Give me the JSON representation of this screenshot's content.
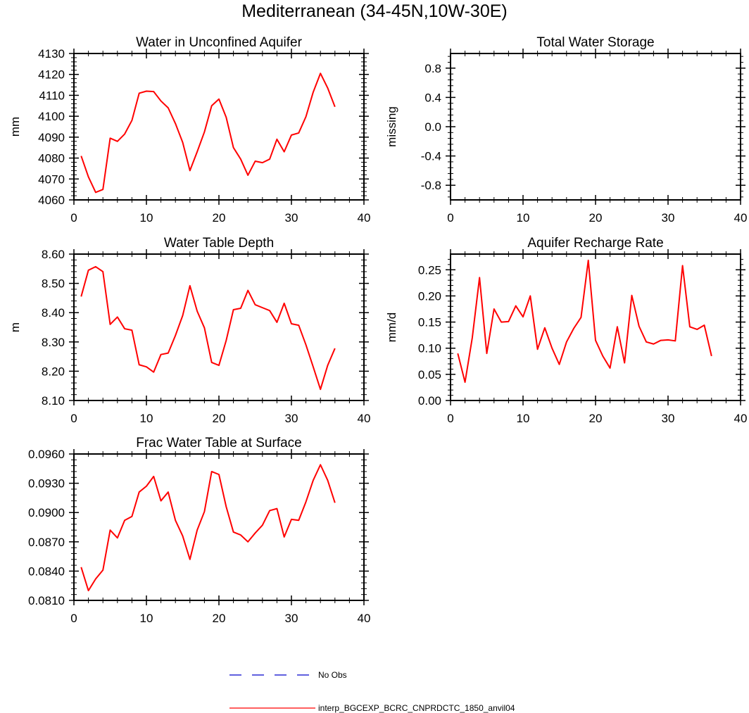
{
  "title": "Mediterranean (34-45N,10W-30E)",
  "colors": {
    "model": "#ff0000",
    "obs": "#0000cc",
    "axis": "#000000"
  },
  "legend": {
    "obs_label": "No Obs",
    "model_label": "interp_BGCEXP_BCRC_CNPRDCTC_1850_anvil04"
  },
  "chart_data": [
    {
      "type": "line",
      "title": "Water in Unconfined Aquifer",
      "ylabel": "mm",
      "xlabel": "",
      "xlim": [
        0,
        40
      ],
      "ylim": [
        4060,
        4130
      ],
      "xticks": [
        0,
        10,
        20,
        30,
        40
      ],
      "xtick_labels": [
        "0",
        "10",
        "20",
        "30",
        "40"
      ],
      "yticks": [
        4060,
        4070,
        4080,
        4090,
        4100,
        4110,
        4120,
        4130
      ],
      "ytick_labels": [
        "4060",
        "4070",
        "4080",
        "4090",
        "4100",
        "4110",
        "4120",
        "4130"
      ],
      "series": [
        {
          "name": "interp_BGCEXP_BCRC_CNPRDCTC_1850_anvil04",
          "x": [
            1,
            2,
            3,
            4,
            5,
            6,
            7,
            8,
            9,
            10,
            11,
            12,
            13,
            14,
            15,
            16,
            17,
            18,
            19,
            20,
            21,
            22,
            23,
            24,
            25,
            26,
            27,
            28,
            29,
            30,
            31,
            32,
            33,
            34,
            35,
            36
          ],
          "values": [
            4081,
            4071,
            4063.6,
            4065,
            4089.5,
            4088,
            4091.5,
            4098,
            4111,
            4112,
            4111.8,
            4107.3,
            4104,
            4096.5,
            4087.5,
            4074,
            4083,
            4092.5,
            4105,
            4108.2,
            4099.5,
            4085,
            4079.5,
            4071.8,
            4078.5,
            4077.8,
            4079.5,
            4089,
            4083,
            4091,
            4092,
            4099.8,
            4111.5,
            4120.5,
            4113.5,
            4104.5
          ]
        }
      ]
    },
    {
      "type": "line",
      "title": "Total Water Storage",
      "ylabel": "missing",
      "xlabel": "",
      "xlim": [
        0,
        40
      ],
      "ylim": [
        -1,
        1
      ],
      "xticks": [
        0,
        10,
        20,
        30,
        40
      ],
      "xtick_labels": [
        "0",
        "10",
        "20",
        "30",
        "40"
      ],
      "yticks": [
        -0.8,
        -0.4,
        0.0,
        0.4,
        0.8
      ],
      "ytick_labels": [
        "-0.8",
        "-0.4",
        "0.0",
        "0.4",
        "0.8"
      ],
      "series": []
    },
    {
      "type": "line",
      "title": "Water Table Depth",
      "ylabel": "m",
      "xlabel": "",
      "xlim": [
        0,
        40
      ],
      "ylim": [
        8.1,
        8.6
      ],
      "xticks": [
        0,
        10,
        20,
        30,
        40
      ],
      "xtick_labels": [
        "0",
        "10",
        "20",
        "30",
        "40"
      ],
      "yticks": [
        8.1,
        8.2,
        8.3,
        8.4,
        8.5,
        8.6
      ],
      "ytick_labels": [
        "8.10",
        "8.20",
        "8.30",
        "8.40",
        "8.50",
        "8.60"
      ],
      "series": [
        {
          "name": "interp_BGCEXP_BCRC_CNPRDCTC_1850_anvil04",
          "x": [
            1,
            2,
            3,
            4,
            5,
            6,
            7,
            8,
            9,
            10,
            11,
            12,
            13,
            14,
            15,
            16,
            17,
            18,
            19,
            20,
            21,
            22,
            23,
            24,
            25,
            26,
            27,
            28,
            29,
            30,
            31,
            32,
            33,
            34,
            35,
            36
          ],
          "values": [
            8.455,
            8.545,
            8.557,
            8.54,
            8.36,
            8.385,
            8.345,
            8.34,
            8.222,
            8.215,
            8.197,
            8.257,
            8.262,
            8.322,
            8.39,
            8.492,
            8.405,
            8.348,
            8.23,
            8.22,
            8.305,
            8.41,
            8.415,
            8.476,
            8.427,
            8.417,
            8.407,
            8.367,
            8.432,
            8.362,
            8.357,
            8.29,
            8.215,
            8.138,
            8.22,
            8.278
          ]
        }
      ]
    },
    {
      "type": "line",
      "title": "Aquifer Recharge Rate",
      "ylabel": "mm/d",
      "xlabel": "",
      "xlim": [
        0,
        40
      ],
      "ylim": [
        0,
        0.28
      ],
      "xticks": [
        0,
        10,
        20,
        30,
        40
      ],
      "xtick_labels": [
        "0",
        "10",
        "20",
        "30",
        "40"
      ],
      "yticks": [
        0,
        0.05,
        0.1,
        0.15,
        0.2,
        0.25
      ],
      "ytick_labels": [
        "0.00",
        "0.05",
        "0.10",
        "0.15",
        "0.20",
        "0.25"
      ],
      "series": [
        {
          "name": "interp_BGCEXP_BCRC_CNPRDCTC_1850_anvil04",
          "x": [
            1,
            2,
            3,
            4,
            5,
            6,
            7,
            8,
            9,
            10,
            11,
            12,
            13,
            14,
            15,
            16,
            17,
            18,
            19,
            20,
            21,
            22,
            23,
            24,
            25,
            26,
            27,
            28,
            29,
            30,
            31,
            32,
            33,
            34,
            35,
            36
          ],
          "values": [
            0.09,
            0.035,
            0.12,
            0.235,
            0.09,
            0.175,
            0.15,
            0.151,
            0.181,
            0.16,
            0.2,
            0.098,
            0.139,
            0.1,
            0.069,
            0.112,
            0.138,
            0.159,
            0.268,
            0.115,
            0.085,
            0.062,
            0.141,
            0.072,
            0.201,
            0.142,
            0.112,
            0.108,
            0.115,
            0.116,
            0.114,
            0.258,
            0.141,
            0.136,
            0.144,
            0.085
          ]
        }
      ]
    },
    {
      "type": "line",
      "title": "Frac Water Table at Surface",
      "ylabel": "",
      "xlabel": "",
      "xlim": [
        0,
        40
      ],
      "ylim": [
        0.081,
        0.096
      ],
      "xticks": [
        0,
        10,
        20,
        30,
        40
      ],
      "xtick_labels": [
        "0",
        "10",
        "20",
        "30",
        "40"
      ],
      "yticks": [
        0.081,
        0.084,
        0.087,
        0.09,
        0.093,
        0.096
      ],
      "ytick_labels": [
        "0.0810",
        "0.0840",
        "0.0870",
        "0.0900",
        "0.0930",
        "0.0960"
      ],
      "series": [
        {
          "name": "interp_BGCEXP_BCRC_CNPRDCTC_1850_anvil04",
          "x": [
            1,
            2,
            3,
            4,
            5,
            6,
            7,
            8,
            9,
            10,
            11,
            12,
            13,
            14,
            15,
            16,
            17,
            18,
            19,
            20,
            21,
            22,
            23,
            24,
            25,
            26,
            27,
            28,
            29,
            30,
            31,
            32,
            33,
            34,
            35,
            36
          ],
          "values": [
            0.0844,
            0.082,
            0.0832,
            0.0841,
            0.0882,
            0.0874,
            0.0892,
            0.0896,
            0.0921,
            0.0927,
            0.0937,
            0.0912,
            0.0921,
            0.0892,
            0.0876,
            0.0852,
            0.0882,
            0.0901,
            0.0942,
            0.0939,
            0.0906,
            0.088,
            0.0877,
            0.087,
            0.0879,
            0.0887,
            0.0902,
            0.0904,
            0.0875,
            0.0893,
            0.0892,
            0.0911,
            0.0933,
            0.0949,
            0.0933,
            0.091
          ]
        }
      ]
    }
  ]
}
